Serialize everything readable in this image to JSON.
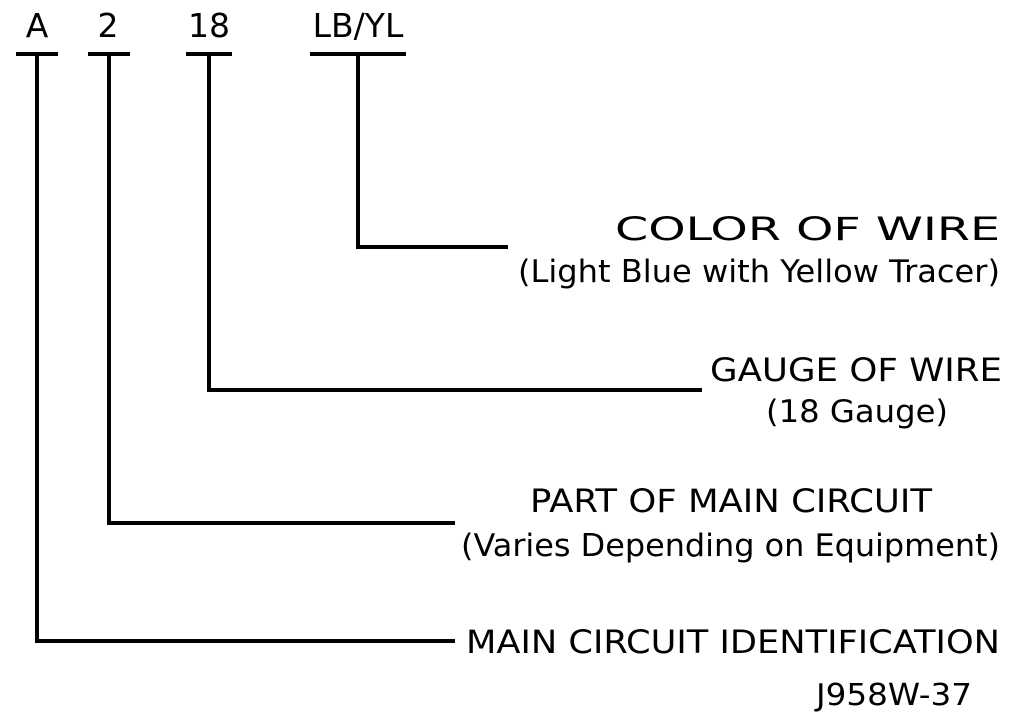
{
  "codes": [
    "A",
    "2",
    "18",
    "LB/YL"
  ],
  "labels": [
    {
      "title": "COLOR OF WIRE",
      "subtitle": "(Light Blue with Yellow Tracer)"
    },
    {
      "title": "GAUGE OF WIRE",
      "subtitle": "(18 Gauge)"
    },
    {
      "title": "PART OF MAIN CIRCUIT",
      "subtitle": "(Varies Depending on Equipment)"
    },
    {
      "title": "MAIN CIRCUIT IDENTIFICATION",
      "subtitle": ""
    }
  ],
  "reference": "J958W-37"
}
